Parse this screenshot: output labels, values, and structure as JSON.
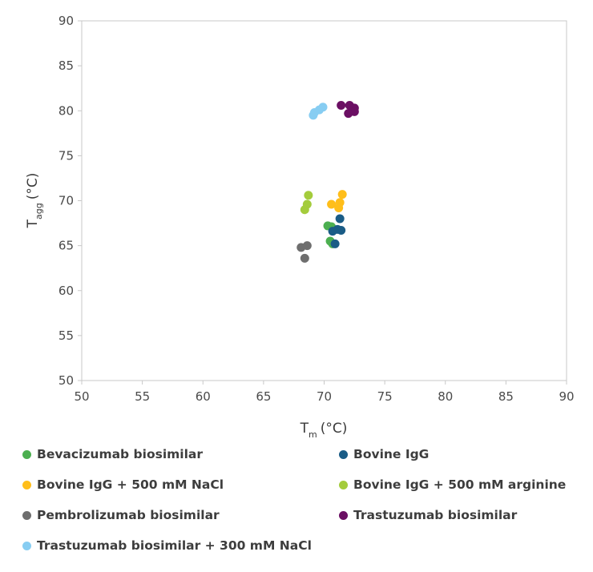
{
  "chart_data": {
    "type": "scatter",
    "xlabel": {
      "main": "T",
      "sub": "m",
      "unit": "(°C)"
    },
    "ylabel": {
      "main": "T",
      "sub": "agg",
      "unit": "(°C)"
    },
    "xlim": [
      50,
      90
    ],
    "ylim": [
      50,
      90
    ],
    "xticks": [
      "50",
      "55",
      "60",
      "65",
      "70",
      "75",
      "80",
      "85",
      "90"
    ],
    "yticks": [
      "50",
      "55",
      "60",
      "65",
      "70",
      "75",
      "80",
      "85",
      "90"
    ],
    "grid": false,
    "legend_position": "bottom",
    "series": [
      {
        "name": "Bevacizumab biosimilar",
        "color": "#4caf50",
        "points": [
          [
            70.3,
            67.2
          ],
          [
            70.6,
            67.1
          ],
          [
            70.5,
            65.5
          ],
          [
            70.7,
            65.2
          ]
        ]
      },
      {
        "name": "Bovine IgG",
        "color": "#1a5c86",
        "points": [
          [
            71.3,
            68.0
          ],
          [
            71.1,
            66.8
          ],
          [
            71.4,
            66.7
          ],
          [
            70.7,
            66.6
          ],
          [
            70.9,
            65.2
          ]
        ]
      },
      {
        "name": "Bovine IgG + 500 mM NaCl",
        "color": "#ffbe1a",
        "points": [
          [
            71.5,
            70.7
          ],
          [
            70.6,
            69.6
          ],
          [
            71.3,
            69.8
          ],
          [
            71.2,
            69.2
          ]
        ]
      },
      {
        "name": "Bovine IgG + 500 mM arginine",
        "color": "#a4cc3c",
        "points": [
          [
            68.7,
            70.6
          ],
          [
            68.6,
            69.6
          ],
          [
            68.4,
            69.0
          ]
        ]
      },
      {
        "name": "Pembrolizumab biosimilar",
        "color": "#6e6e6e",
        "points": [
          [
            68.1,
            64.8
          ],
          [
            68.6,
            65.0
          ],
          [
            68.4,
            63.6
          ]
        ]
      },
      {
        "name": "Trastuzumab biosimilar",
        "color": "#6b0f63",
        "points": [
          [
            71.4,
            80.6
          ],
          [
            72.1,
            80.6
          ],
          [
            72.5,
            80.3
          ],
          [
            72.5,
            79.9
          ],
          [
            72.0,
            79.7
          ]
        ]
      },
      {
        "name": "Trastuzumab biosimilar + 300 mM NaCl",
        "color": "#87cdf2",
        "points": [
          [
            69.9,
            80.4
          ],
          [
            69.6,
            80.1
          ],
          [
            69.2,
            79.8
          ],
          [
            69.1,
            79.5
          ]
        ]
      }
    ]
  }
}
